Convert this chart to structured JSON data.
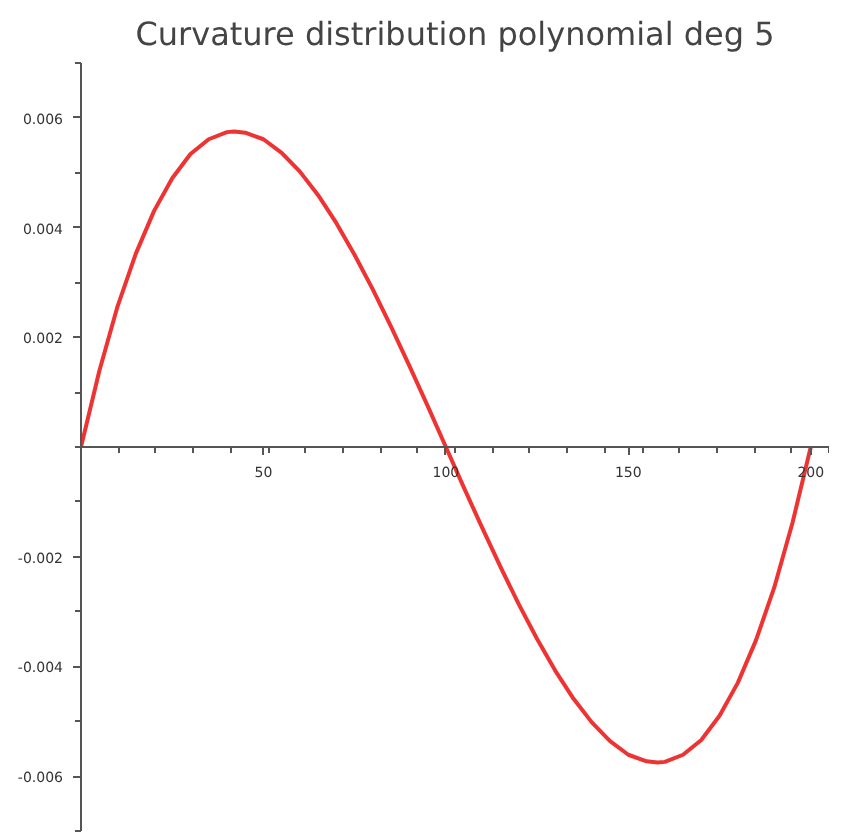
{
  "chart_data": {
    "type": "line",
    "title": "Curvature distribution polynomial deg 5",
    "x": [
      0,
      5,
      10,
      15,
      20,
      25,
      30,
      35,
      40,
      42,
      45,
      50,
      55,
      60,
      65,
      70,
      75,
      80,
      85,
      90,
      95,
      100,
      105,
      110,
      115,
      120,
      125,
      130,
      135,
      140,
      145,
      150,
      155,
      158,
      160,
      165,
      170,
      175,
      180,
      185,
      190,
      195,
      200
    ],
    "series": [
      {
        "color": "#ee3333",
        "values": [
          0,
          0.00138,
          0.00256,
          0.00352,
          0.0043,
          0.0049,
          0.00534,
          0.00561,
          0.00574,
          0.00575,
          0.00573,
          0.00561,
          0.00536,
          0.00502,
          0.00459,
          0.00408,
          0.0035,
          0.00287,
          0.00219,
          0.00148,
          0.00075,
          0,
          -0.00075,
          -0.00148,
          -0.00219,
          -0.00287,
          -0.0035,
          -0.00408,
          -0.00459,
          -0.00502,
          -0.00536,
          -0.00561,
          -0.00573,
          -0.00575,
          -0.00574,
          -0.00561,
          -0.00534,
          -0.0049,
          -0.0043,
          -0.00352,
          -0.00256,
          -0.00138,
          0
        ]
      }
    ],
    "xlim": [
      0,
      205
    ],
    "ylim": [
      -0.007,
      0.007
    ],
    "xticks": [
      50,
      100,
      150,
      200
    ],
    "yticks": [
      {
        "value": -0.006,
        "label": "-0.006"
      },
      {
        "value": -0.004,
        "label": "-0.004"
      },
      {
        "value": -0.002,
        "label": "-0.002"
      },
      {
        "value": 0.002,
        "label": "0.002"
      },
      {
        "value": 0.004,
        "label": "0.004"
      },
      {
        "value": 0.006,
        "label": "0.006"
      }
    ],
    "grid": false,
    "marker": "none",
    "line_style": "solid"
  }
}
